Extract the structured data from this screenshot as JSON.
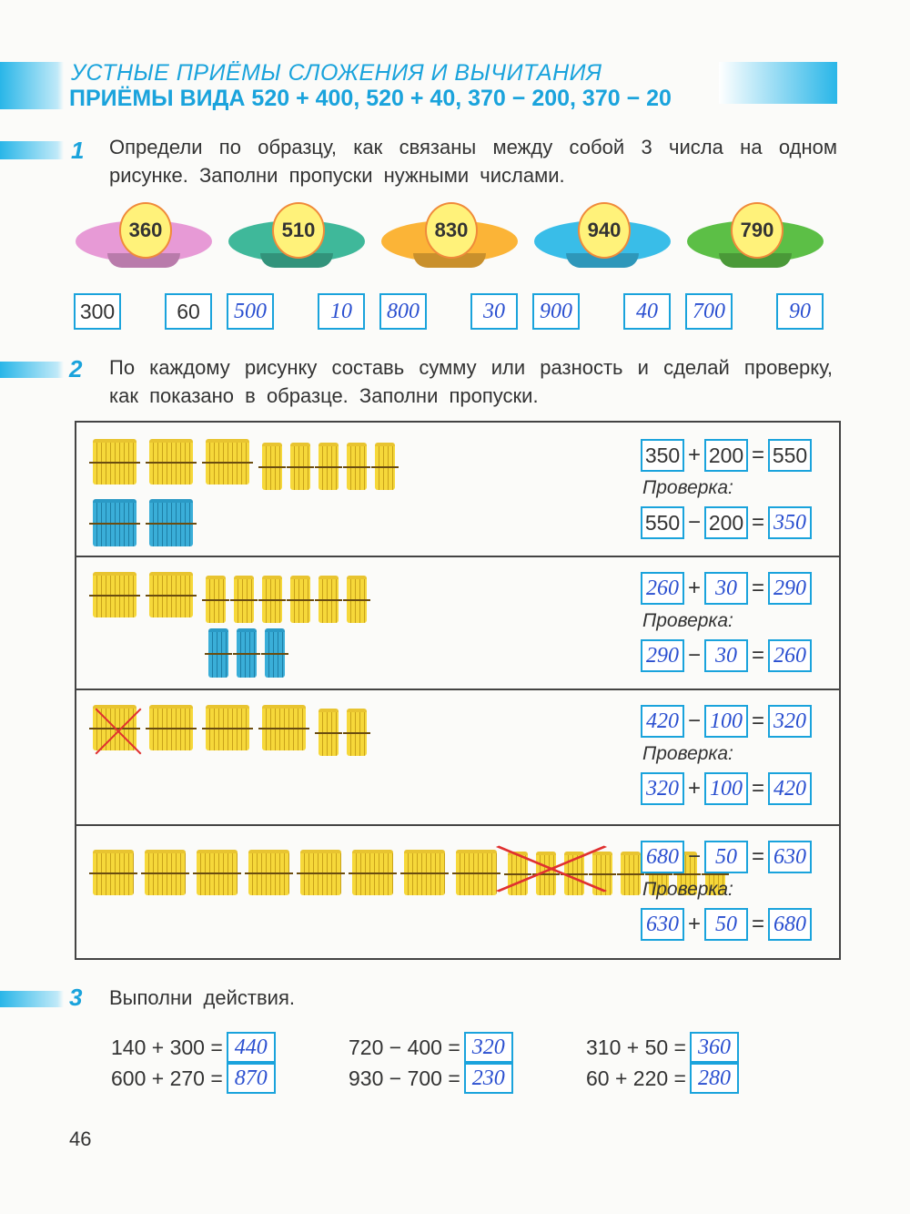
{
  "header": {
    "title": "УСТНЫЕ ПРИЁМЫ СЛОЖЕНИЯ И ВЫЧИТАНИЯ",
    "subtitle": "ПРИЁМЫ ВИДА 520 + 400, 520 + 40, 370 − 200, 370 − 20"
  },
  "task1": {
    "number": "1",
    "text": "Определи по образцу, как связаны между собой 3 числа на одном рисунке. Заполни пропуски нужными числами.",
    "plates": [
      {
        "top": "360",
        "left": "300",
        "right": "60",
        "color": "#e79ad6",
        "handwritten": false
      },
      {
        "top": "510",
        "left": "500",
        "right": "10",
        "color": "#3fb89a",
        "handwritten": true
      },
      {
        "top": "830",
        "left": "800",
        "right": "30",
        "color": "#fbb437",
        "handwritten": true
      },
      {
        "top": "940",
        "left": "900",
        "right": "40",
        "color": "#39bde8",
        "handwritten": true
      },
      {
        "top": "790",
        "left": "700",
        "right": "90",
        "color": "#5cbf46",
        "handwritten": true
      }
    ]
  },
  "task2": {
    "number": "2",
    "text": "По каждому рисунку составь сумму или разность и сделай проверку, как показано в образце. Заполни пропуски.",
    "check_label": "Проверка:",
    "rows": [
      {
        "eq": [
          "350",
          "+",
          "200",
          "=",
          "550"
        ],
        "check": [
          "550",
          "−",
          "200",
          "=",
          "350"
        ],
        "bundles": {
          "hundreds": 3,
          "tens": 5,
          "blue_hundreds": 2,
          "blue_tens": 0,
          "crossed_hundreds": 0,
          "crossed_tens": 0
        }
      },
      {
        "eq": [
          "260",
          "+",
          "30",
          "=",
          "290"
        ],
        "check": [
          "290",
          "−",
          "30",
          "=",
          "260"
        ],
        "bundles": {
          "hundreds": 2,
          "tens": 6,
          "blue_hundreds": 0,
          "blue_tens": 3,
          "crossed_hundreds": 0,
          "crossed_tens": 0
        }
      },
      {
        "eq": [
          "420",
          "−",
          "100",
          "=",
          "320"
        ],
        "check": [
          "320",
          "+",
          "100",
          "=",
          "420"
        ],
        "bundles": {
          "hundreds": 4,
          "tens": 2,
          "blue_hundreds": 0,
          "blue_tens": 0,
          "crossed_hundreds": 1,
          "crossed_tens": 0
        }
      },
      {
        "eq": [
          "680",
          "−",
          "50",
          "=",
          "630"
        ],
        "check": [
          "630",
          "+",
          "50",
          "=",
          "680"
        ],
        "bundles": {
          "hundreds": 6,
          "tens": 8,
          "blue_hundreds": 0,
          "blue_tens": 0,
          "crossed_hundreds": 0,
          "crossed_tens": 5
        }
      }
    ]
  },
  "task3": {
    "number": "3",
    "text": "Выполни действия.",
    "exercises": [
      {
        "expr": "140 + 300 =",
        "answer": "440"
      },
      {
        "expr": "600 + 270 =",
        "answer": "870"
      },
      {
        "expr": "720 − 400 =",
        "answer": "320"
      },
      {
        "expr": "930 − 700 =",
        "answer": "230"
      },
      {
        "expr": "310 + 50 =",
        "answer": "360"
      },
      {
        "expr": "60 + 220 =",
        "answer": "280"
      }
    ]
  },
  "page_number": "46"
}
